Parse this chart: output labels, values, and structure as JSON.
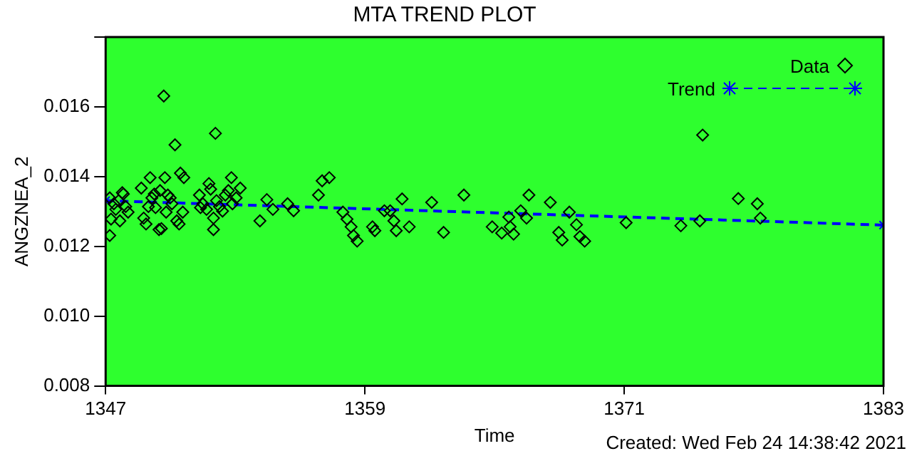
{
  "chart_data": {
    "type": "scatter",
    "title": "MTA TREND PLOT",
    "xlabel": "Time",
    "ylabel": "ANGZNEA_2",
    "xlim": [
      1347,
      1383
    ],
    "xticks": [
      1347,
      1359,
      1371,
      1383
    ],
    "ylim": [
      0.008,
      0.018
    ],
    "yticks": [
      0.008,
      {
        "value": 0.01,
        "label": "0.010"
      },
      0.012,
      0.014,
      0.016,
      {
        "value": 0.018,
        "label": null
      }
    ],
    "grid": false,
    "legend": "top right",
    "annotations": [
      "Created: Wed Feb 24 14:38:42 2021"
    ],
    "series": [
      {
        "name": "Data",
        "type": "scatter",
        "marker": "diamond",
        "color": "#000000",
        "x": [
          1347.19,
          1347.25,
          1347.19,
          1347.38,
          1347.47,
          1347.6,
          1347.77,
          1347.82,
          1347.66,
          1347.93,
          1348.04,
          1348.65,
          1348.76,
          1348.87,
          1348.98,
          1349.06,
          1349.14,
          1349.25,
          1349.31,
          1349.47,
          1349.58,
          1349.52,
          1349.69,
          1349.74,
          1349.8,
          1349.88,
          1349.99,
          1350.07,
          1350.21,
          1350.29,
          1350.4,
          1350.46,
          1350.62,
          1350.57,
          1351.34,
          1351.39,
          1351.5,
          1351.67,
          1351.78,
          1351.86,
          1351.99,
          1352.08,
          1351.99,
          1352.13,
          1352.27,
          1352.41,
          1352.54,
          1352.68,
          1352.82,
          1352.87,
          1353.04,
          1353.23,
          1354.14,
          1354.46,
          1354.74,
          1355.42,
          1355.7,
          1356.85,
          1357.02,
          1357.35,
          1357.98,
          1358.17,
          1358.36,
          1358.47,
          1358.64,
          1359.35,
          1359.46,
          1359.9,
          1360.17,
          1360.34,
          1360.45,
          1360.72,
          1361.05,
          1362.09,
          1362.64,
          1363.58,
          1364.89,
          1365.33,
          1365.72,
          1365.88,
          1365.66,
          1366.21,
          1366.59,
          1366.48,
          1367.58,
          1367.97,
          1368.13,
          1368.46,
          1368.79,
          1368.95,
          1369.17,
          1371.09,
          1373.62,
          1374.5,
          1374.63,
          1376.28,
          1377.16,
          1377.3
        ],
        "values": [
          0.01339,
          0.01278,
          0.01231,
          0.01322,
          0.01306,
          0.01331,
          0.01354,
          0.0135,
          0.01273,
          0.01314,
          0.01298,
          0.01367,
          0.01281,
          0.01264,
          0.01314,
          0.01397,
          0.01339,
          0.0135,
          0.01311,
          0.01248,
          0.01251,
          0.0136,
          0.01631,
          0.01397,
          0.01298,
          0.01347,
          0.01339,
          0.01322,
          0.01491,
          0.01273,
          0.01264,
          0.0141,
          0.01397,
          0.01298,
          0.01347,
          0.01311,
          0.01322,
          0.01306,
          0.0138,
          0.01364,
          0.01248,
          0.01524,
          0.01281,
          0.01331,
          0.01314,
          0.01301,
          0.01347,
          0.0136,
          0.01397,
          0.01322,
          0.01339,
          0.01367,
          0.01273,
          0.01334,
          0.01306,
          0.01322,
          0.01302,
          0.01347,
          0.01388,
          0.01397,
          0.01298,
          0.01278,
          0.01256,
          0.01231,
          0.01215,
          0.01256,
          0.01245,
          0.01302,
          0.01302,
          0.01273,
          0.01245,
          0.01336,
          0.01256,
          0.01326,
          0.0124,
          0.01347,
          0.01256,
          0.01238,
          0.01256,
          0.01235,
          0.01284,
          0.01302,
          0.01347,
          0.01281,
          0.01326,
          0.0124,
          0.01218,
          0.01298,
          0.01262,
          0.01228,
          0.01215,
          0.01268,
          0.01259,
          0.01273,
          0.01519,
          0.01337,
          0.01322,
          0.01281
        ]
      },
      {
        "name": "Trend",
        "type": "line",
        "marker": "cross",
        "line_style": "dashed",
        "color": "#0000ff",
        "x": [
          1347,
          1383
        ],
        "values": [
          0.01331,
          0.01261
        ]
      }
    ]
  }
}
